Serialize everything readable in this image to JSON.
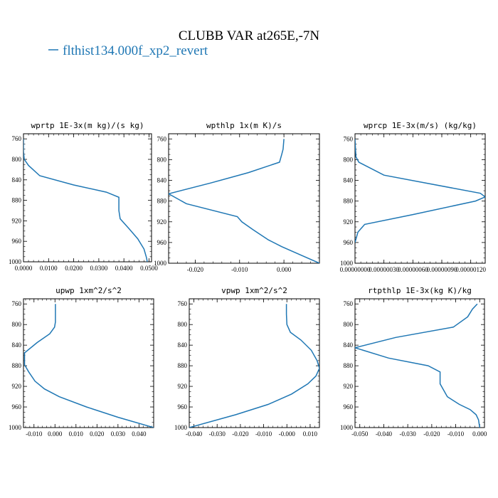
{
  "figure": {
    "title": "CLUBB VAR at265E,-7N",
    "legend_label": "flthist134.000f_xp2_revert",
    "series_color": "#1f77b4"
  },
  "chart_data": [
    {
      "type": "line",
      "title": "wprtp  1E-3x(m kg)/(s kg)",
      "xlim": [
        0.0,
        0.051
      ],
      "ylim": [
        1000,
        750
      ],
      "xticks": [
        0.0,
        0.01,
        0.02,
        0.03,
        0.04,
        0.05
      ],
      "xtick_labels": [
        "0.0000",
        "0.0100",
        "0.0200",
        "0.0300",
        "0.0400",
        "0.0500"
      ],
      "yticks": [
        760,
        800,
        840,
        880,
        920,
        960,
        1000
      ],
      "ytick_labels": [
        "760",
        "800",
        "840",
        "880",
        "920",
        "960",
        "1000"
      ],
      "series": [
        {
          "x": [
            0.0,
            0.0,
            0.0003,
            0.002,
            0.0065,
            0.02,
            0.033,
            0.038,
            0.038,
            0.0385,
            0.042,
            0.0455,
            0.048,
            0.049,
            0.0493
          ],
          "y": [
            760,
            785,
            800,
            812,
            832,
            850,
            864,
            874,
            900,
            916,
            935,
            955,
            975,
            992,
            1000
          ]
        }
      ]
    },
    {
      "type": "line",
      "title": "wpthlp  1x(m K)/s",
      "xlim": [
        -0.026,
        0.008
      ],
      "ylim": [
        1000,
        750
      ],
      "xticks": [
        -0.02,
        -0.01,
        0.0
      ],
      "xtick_labels": [
        "-0.020",
        "-0.010",
        "0.000"
      ],
      "yticks": [
        760,
        800,
        840,
        880,
        920,
        960,
        1000
      ],
      "ytick_labels": [
        "760",
        "800",
        "840",
        "880",
        "920",
        "960",
        "1000"
      ],
      "series": [
        {
          "x": [
            0.0,
            -0.0002,
            -0.0005,
            -0.001,
            -0.008,
            -0.0165,
            -0.026,
            -0.022,
            -0.0105,
            -0.0095,
            -0.007,
            -0.0035,
            -0.0005,
            0.004,
            0.008
          ],
          "y": [
            760,
            780,
            790,
            805,
            825,
            845,
            866,
            885,
            910,
            920,
            935,
            955,
            968,
            985,
            1000
          ]
        }
      ]
    },
    {
      "type": "line",
      "title": "wprcp  1E-3x(m/s) (kg/kg)",
      "xlim": [
        0.0,
        1.35e-06
      ],
      "ylim": [
        1000,
        750
      ],
      "xticks": [
        0.0,
        3e-07,
        6e-07,
        9e-07,
        1.2e-06
      ],
      "xtick_labels": [
        "0.00000000",
        "0.00000030",
        "0.00000060",
        "0.00000090",
        "0.00000120"
      ],
      "yticks": [
        760,
        800,
        840,
        880,
        920,
        960,
        1000
      ],
      "ytick_labels": [
        "760",
        "800",
        "840",
        "880",
        "920",
        "960",
        "1000"
      ],
      "series": [
        {
          "x": [
            0.0,
            5e-09,
            1e-08,
            4e-08,
            3e-07,
            1.3e-06,
            1.35e-06,
            1.25e-06,
            6e-07,
            1e-07,
            3e-08,
            0.0
          ],
          "y": [
            760,
            780,
            795,
            805,
            830,
            865,
            872,
            880,
            906,
            925,
            940,
            960
          ]
        }
      ]
    },
    {
      "type": "line",
      "title": "upwp  1xm^2/s^2",
      "xlim": [
        -0.015,
        0.047
      ],
      "ylim": [
        1000,
        750
      ],
      "xticks": [
        -0.01,
        0.0,
        0.01,
        0.02,
        0.03,
        0.04
      ],
      "xtick_labels": [
        "-0.010",
        "0.000",
        "0.010",
        "0.020",
        "0.030",
        "0.040"
      ],
      "yticks": [
        760,
        800,
        840,
        880,
        920,
        960,
        1000
      ],
      "ytick_labels": [
        "760",
        "800",
        "840",
        "880",
        "920",
        "960",
        "1000"
      ],
      "series": [
        {
          "x": [
            0.0002,
            0.0002,
            0.0002,
            -0.0002,
            -0.0025,
            -0.0085,
            -0.0145,
            -0.0145,
            -0.0125,
            -0.0095,
            -0.005,
            0.002,
            0.015,
            0.03,
            0.047
          ],
          "y": [
            760,
            780,
            795,
            805,
            818,
            835,
            855,
            878,
            892,
            910,
            925,
            940,
            960,
            980,
            1000
          ]
        }
      ]
    },
    {
      "type": "line",
      "title": "vpwp  1xm^2/s^2",
      "xlim": [
        -0.042,
        0.014
      ],
      "ylim": [
        1000,
        750
      ],
      "xticks": [
        -0.04,
        -0.03,
        -0.02,
        -0.01,
        0.0,
        0.01
      ],
      "xtick_labels": [
        "-0.040",
        "-0.030",
        "-0.020",
        "-0.010",
        "-0.000",
        "0.010"
      ],
      "yticks": [
        760,
        800,
        840,
        880,
        920,
        960,
        1000
      ],
      "ytick_labels": [
        "760",
        "800",
        "840",
        "880",
        "920",
        "960",
        "1000"
      ],
      "series": [
        {
          "x": [
            -0.0002,
            -0.0002,
            0.0,
            0.0015,
            0.006,
            0.0105,
            0.013,
            0.014,
            0.0125,
            0.009,
            0.002,
            -0.008,
            -0.022,
            -0.042
          ],
          "y": [
            760,
            780,
            800,
            815,
            830,
            850,
            870,
            885,
            900,
            915,
            935,
            955,
            975,
            1000
          ]
        }
      ]
    },
    {
      "type": "line",
      "title": "rtpthlp  1E-3x(kg K)/kg",
      "xlim": [
        -0.052,
        0.002
      ],
      "ylim": [
        1000,
        750
      ],
      "xticks": [
        -0.05,
        -0.04,
        -0.03,
        -0.02,
        -0.01,
        0.0
      ],
      "xtick_labels": [
        "-0.050",
        "-0.040",
        "-0.030",
        "-0.020",
        "-0.010",
        "0.000"
      ],
      "yticks": [
        760,
        800,
        840,
        880,
        920,
        960,
        1000
      ],
      "ytick_labels": [
        "760",
        "800",
        "840",
        "880",
        "920",
        "960",
        "1000"
      ],
      "series": [
        {
          "x": [
            -0.001,
            -0.003,
            -0.005,
            -0.011,
            -0.035,
            -0.052,
            -0.038,
            -0.0215,
            -0.0165,
            -0.0165,
            -0.0135,
            -0.0085,
            -0.004,
            -0.0015,
            -0.0005,
            0.0
          ],
          "y": [
            760,
            770,
            785,
            805,
            825,
            845,
            865,
            880,
            892,
            915,
            940,
            955,
            965,
            975,
            985,
            1000
          ]
        }
      ]
    }
  ]
}
